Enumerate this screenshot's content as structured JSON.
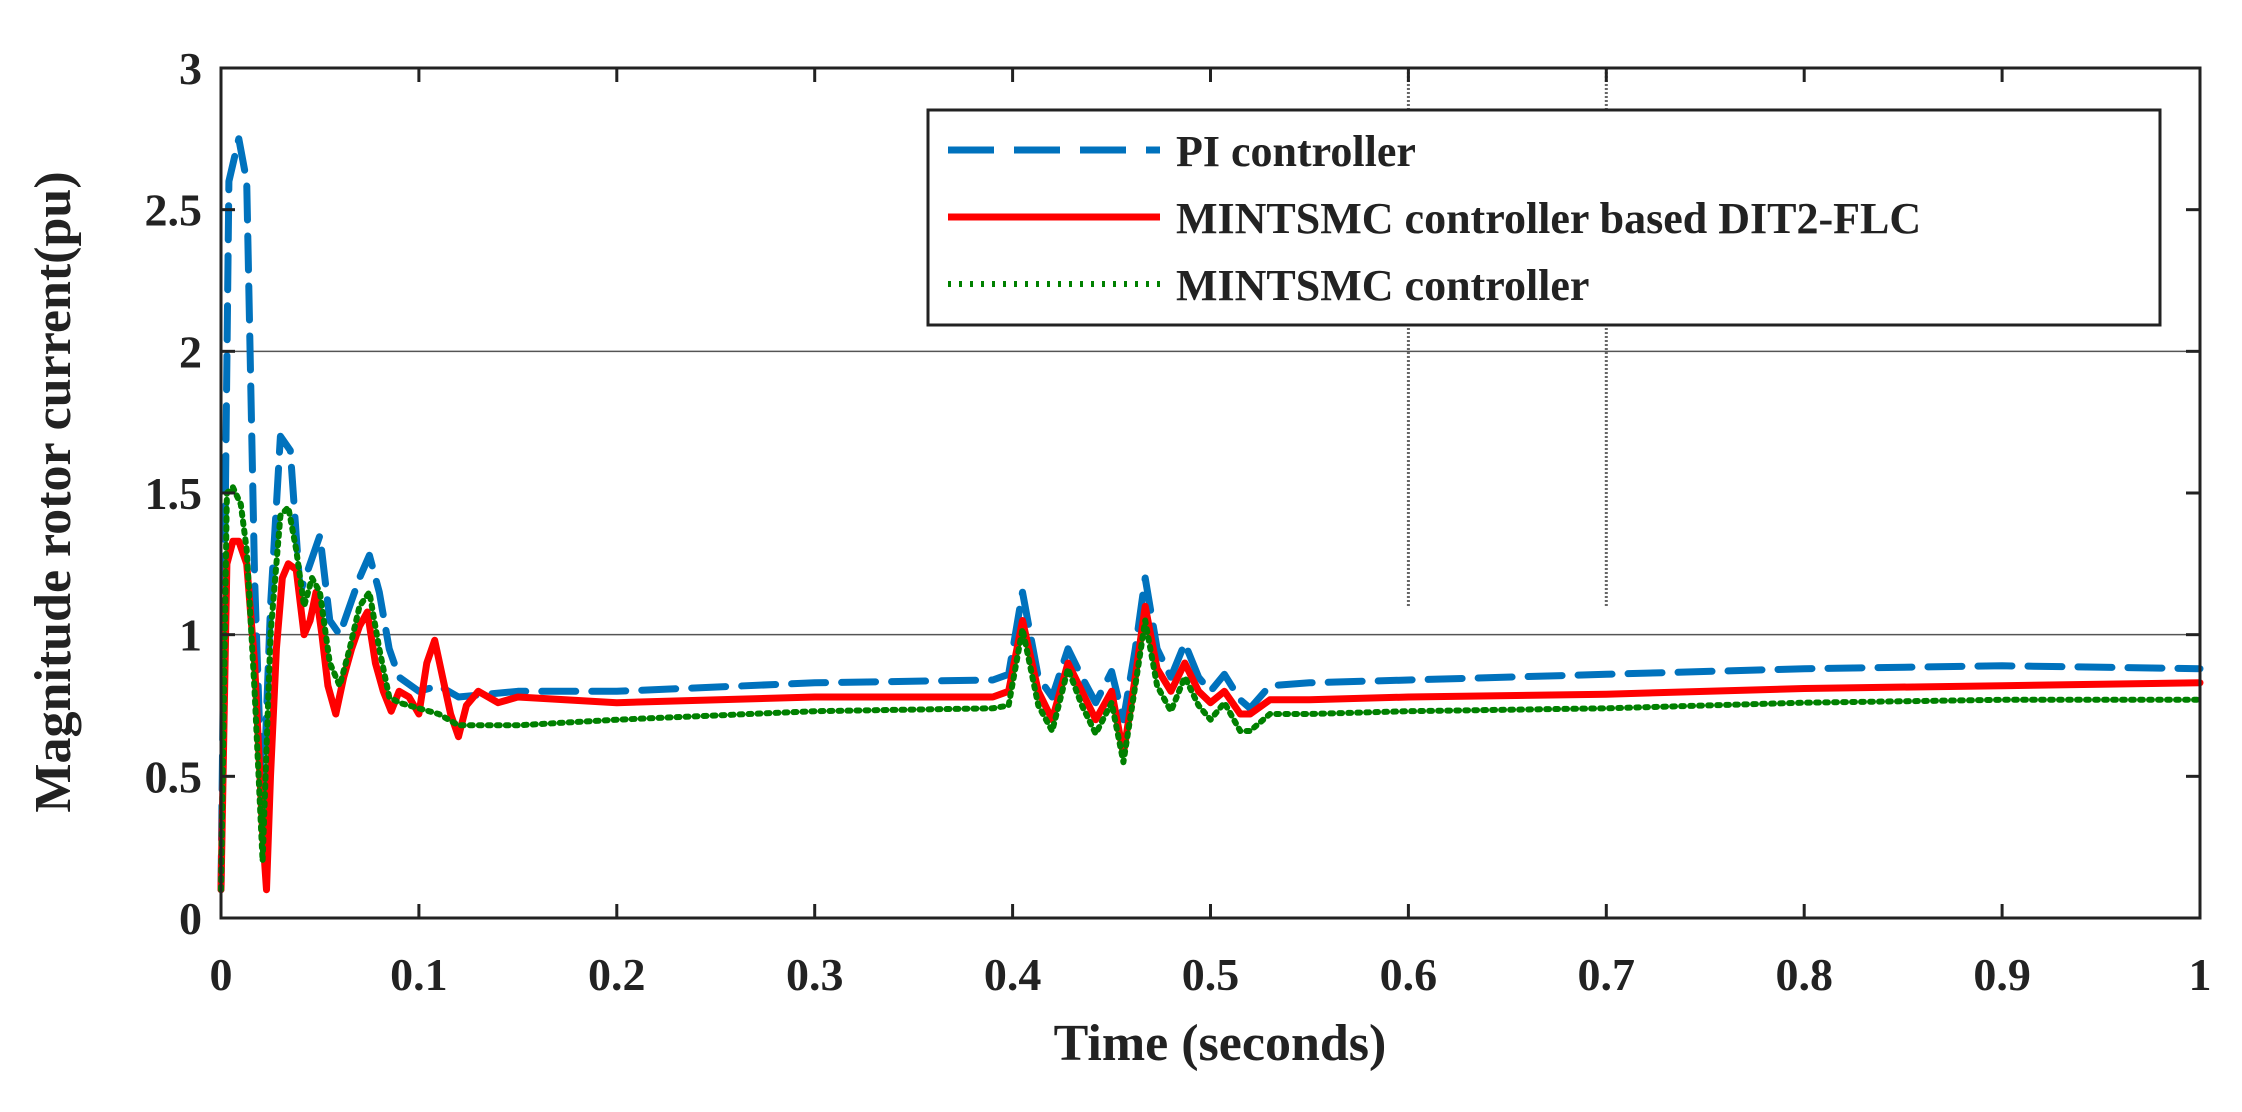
{
  "chart_data": {
    "type": "line",
    "title": "",
    "xlabel": "Time (seconds)",
    "ylabel": "Magnitude rotor current(pu)",
    "xlim": [
      0,
      1
    ],
    "ylim": [
      0,
      3
    ],
    "xticks": [
      0,
      0.1,
      0.2,
      0.3,
      0.4,
      0.5,
      0.6,
      0.7,
      0.8,
      0.9,
      1
    ],
    "xtick_labels": [
      "0",
      "0.1",
      "0.2",
      "0.3",
      "0.4",
      "0.5",
      "0.6",
      "0.7",
      "0.8",
      "0.9",
      "1"
    ],
    "yticks": [
      0,
      0.5,
      1,
      1.5,
      2,
      2.5,
      3
    ],
    "ytick_labels": [
      "0",
      "0.5",
      "1",
      "1.5",
      "2",
      "2.5",
      "3"
    ],
    "reference_lines": {
      "horizontal": [
        1,
        2
      ],
      "vertical": [
        0.6,
        0.7
      ]
    },
    "legend_position": "top-right",
    "series": [
      {
        "name": "PI controller",
        "color": "#0072BD",
        "style": "dashed",
        "x": [
          0,
          0.004,
          0.009,
          0.013,
          0.017,
          0.021,
          0.025,
          0.03,
          0.035,
          0.04,
          0.045,
          0.05,
          0.055,
          0.06,
          0.065,
          0.07,
          0.075,
          0.08,
          0.085,
          0.09,
          0.1,
          0.11,
          0.12,
          0.15,
          0.2,
          0.3,
          0.39,
          0.398,
          0.405,
          0.413,
          0.42,
          0.428,
          0.435,
          0.442,
          0.45,
          0.456,
          0.462,
          0.467,
          0.473,
          0.48,
          0.487,
          0.494,
          0.5,
          0.507,
          0.515,
          0.52,
          0.53,
          0.55,
          0.6,
          0.7,
          0.8,
          0.9,
          1.0
        ],
        "y": [
          0.1,
          2.6,
          2.75,
          2.6,
          1.2,
          0.35,
          1.1,
          1.7,
          1.65,
          1.15,
          1.25,
          1.35,
          1.05,
          1.0,
          1.1,
          1.2,
          1.28,
          1.15,
          0.95,
          0.85,
          0.8,
          0.82,
          0.78,
          0.8,
          0.8,
          0.83,
          0.84,
          0.86,
          1.15,
          0.85,
          0.78,
          0.95,
          0.85,
          0.76,
          0.87,
          0.7,
          0.95,
          1.2,
          0.95,
          0.85,
          0.97,
          0.85,
          0.8,
          0.86,
          0.77,
          0.74,
          0.82,
          0.83,
          0.84,
          0.86,
          0.88,
          0.89,
          0.88
        ]
      },
      {
        "name": "MINTSMC controller based DIT2-FLC",
        "color": "#FF0000",
        "style": "solid",
        "x": [
          0,
          0.003,
          0.006,
          0.009,
          0.013,
          0.017,
          0.021,
          0.023,
          0.025,
          0.028,
          0.031,
          0.034,
          0.038,
          0.042,
          0.045,
          0.048,
          0.051,
          0.054,
          0.058,
          0.062,
          0.066,
          0.07,
          0.074,
          0.078,
          0.082,
          0.086,
          0.09,
          0.095,
          0.1,
          0.104,
          0.108,
          0.112,
          0.116,
          0.12,
          0.124,
          0.13,
          0.14,
          0.15,
          0.2,
          0.3,
          0.39,
          0.398,
          0.405,
          0.413,
          0.42,
          0.428,
          0.435,
          0.442,
          0.45,
          0.456,
          0.462,
          0.467,
          0.473,
          0.48,
          0.487,
          0.494,
          0.5,
          0.507,
          0.515,
          0.52,
          0.53,
          0.55,
          0.6,
          0.7,
          0.8,
          0.9,
          1.0
        ],
        "y": [
          0.1,
          1.25,
          1.33,
          1.33,
          1.25,
          0.9,
          0.3,
          0.1,
          0.5,
          0.95,
          1.2,
          1.25,
          1.23,
          1.0,
          1.05,
          1.15,
          1.0,
          0.82,
          0.72,
          0.85,
          0.95,
          1.03,
          1.08,
          0.9,
          0.8,
          0.73,
          0.8,
          0.78,
          0.72,
          0.9,
          0.98,
          0.85,
          0.72,
          0.64,
          0.75,
          0.8,
          0.76,
          0.78,
          0.76,
          0.78,
          0.78,
          0.8,
          1.05,
          0.8,
          0.7,
          0.9,
          0.8,
          0.7,
          0.8,
          0.58,
          0.85,
          1.1,
          0.88,
          0.8,
          0.9,
          0.8,
          0.76,
          0.8,
          0.72,
          0.72,
          0.77,
          0.77,
          0.78,
          0.79,
          0.81,
          0.82,
          0.83
        ]
      },
      {
        "name": "MINTSMC controller",
        "color": "#008000",
        "style": "dotted",
        "x": [
          0,
          0.003,
          0.006,
          0.01,
          0.013,
          0.017,
          0.021,
          0.025,
          0.03,
          0.034,
          0.038,
          0.042,
          0.046,
          0.05,
          0.055,
          0.06,
          0.065,
          0.07,
          0.075,
          0.08,
          0.085,
          0.09,
          0.1,
          0.11,
          0.12,
          0.15,
          0.2,
          0.3,
          0.39,
          0.398,
          0.405,
          0.413,
          0.42,
          0.428,
          0.435,
          0.442,
          0.45,
          0.456,
          0.462,
          0.467,
          0.473,
          0.48,
          0.487,
          0.494,
          0.5,
          0.507,
          0.515,
          0.52,
          0.53,
          0.55,
          0.6,
          0.7,
          0.8,
          0.9,
          1.0
        ],
        "y": [
          0.1,
          1.5,
          1.52,
          1.46,
          1.3,
          0.8,
          0.2,
          1.0,
          1.42,
          1.45,
          1.3,
          1.1,
          1.2,
          1.15,
          0.9,
          0.82,
          0.95,
          1.1,
          1.15,
          0.95,
          0.78,
          0.76,
          0.74,
          0.72,
          0.68,
          0.68,
          0.7,
          0.73,
          0.74,
          0.75,
          1.02,
          0.75,
          0.66,
          0.88,
          0.75,
          0.65,
          0.76,
          0.55,
          0.82,
          1.05,
          0.82,
          0.73,
          0.85,
          0.75,
          0.7,
          0.76,
          0.66,
          0.66,
          0.72,
          0.72,
          0.73,
          0.74,
          0.76,
          0.77,
          0.77
        ]
      }
    ]
  }
}
